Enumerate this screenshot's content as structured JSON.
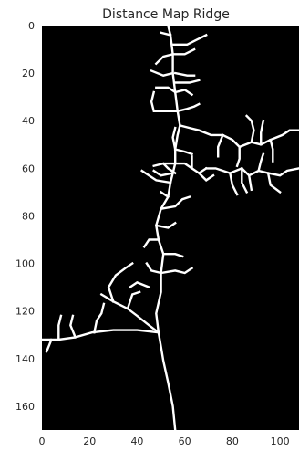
{
  "chart_data": {
    "type": "heatmap",
    "title": "Distance Map Ridge",
    "xlabel": "",
    "ylabel": "",
    "xlim": [
      0,
      108
    ],
    "ylim": [
      170,
      0
    ],
    "x_ticks": [
      0,
      20,
      40,
      60,
      80,
      100
    ],
    "y_ticks": [
      0,
      20,
      40,
      60,
      80,
      100,
      120,
      140,
      160
    ],
    "grid": false,
    "colormap": "gray",
    "background_color": "#000000",
    "ridge_color": "#ffffff",
    "ridge_paths": [
      [
        [
          56,
          170
        ],
        [
          55,
          160
        ],
        [
          53,
          150
        ],
        [
          51,
          141
        ],
        [
          50,
          135
        ],
        [
          49,
          129
        ]
      ],
      [
        [
          49,
          129
        ],
        [
          48,
          121
        ],
        [
          50,
          112
        ],
        [
          50,
          104
        ],
        [
          51,
          96
        ],
        [
          49,
          90
        ],
        [
          48,
          84
        ],
        [
          50,
          77
        ],
        [
          53,
          72
        ],
        [
          54,
          66
        ],
        [
          55,
          62
        ],
        [
          56,
          58
        ],
        [
          56,
          52
        ],
        [
          57,
          46
        ],
        [
          58,
          42
        ],
        [
          57,
          36
        ],
        [
          56,
          28
        ],
        [
          55,
          20
        ],
        [
          55,
          12
        ],
        [
          54,
          4
        ],
        [
          53,
          0
        ]
      ],
      [
        [
          49,
          129
        ],
        [
          40,
          128
        ],
        [
          30,
          128
        ],
        [
          21,
          129
        ],
        [
          14,
          131
        ],
        [
          7,
          132
        ],
        [
          0,
          132
        ]
      ],
      [
        [
          49,
          129
        ],
        [
          45,
          126
        ],
        [
          40,
          122
        ],
        [
          36,
          119
        ],
        [
          30,
          116
        ],
        [
          25,
          113
        ]
      ],
      [
        [
          14,
          131
        ],
        [
          12,
          126
        ],
        [
          13,
          122
        ]
      ],
      [
        [
          7,
          132
        ],
        [
          7,
          126
        ],
        [
          8,
          122
        ]
      ],
      [
        [
          4,
          132
        ],
        [
          2,
          137
        ]
      ],
      [
        [
          22,
          129
        ],
        [
          23,
          124
        ],
        [
          25,
          121
        ],
        [
          26,
          117
        ]
      ],
      [
        [
          30,
          116
        ],
        [
          28,
          110
        ],
        [
          31,
          105
        ],
        [
          35,
          102
        ],
        [
          38,
          100
        ]
      ],
      [
        [
          36,
          119
        ],
        [
          38,
          113
        ],
        [
          41,
          112
        ]
      ],
      [
        [
          45,
          110
        ],
        [
          40,
          108
        ],
        [
          37,
          110
        ]
      ],
      [
        [
          50,
          104
        ],
        [
          56,
          103
        ],
        [
          60,
          104
        ],
        [
          63,
          102
        ]
      ],
      [
        [
          50,
          104
        ],
        [
          46,
          103
        ],
        [
          44,
          100
        ]
      ],
      [
        [
          51,
          96
        ],
        [
          56,
          96
        ],
        [
          59,
          97
        ]
      ],
      [
        [
          49,
          90
        ],
        [
          45,
          90
        ],
        [
          43,
          93
        ]
      ],
      [
        [
          50,
          77
        ],
        [
          56,
          76
        ],
        [
          59,
          73
        ],
        [
          62,
          72
        ]
      ],
      [
        [
          48,
          84
        ],
        [
          53,
          85
        ],
        [
          56,
          83
        ]
      ],
      [
        [
          53,
          72
        ],
        [
          50,
          70
        ]
      ],
      [
        [
          54,
          66
        ],
        [
          48,
          65
        ],
        [
          45,
          63
        ],
        [
          42,
          61
        ]
      ],
      [
        [
          55,
          62
        ],
        [
          50,
          63
        ],
        [
          47,
          61
        ]
      ],
      [
        [
          56,
          58
        ],
        [
          51,
          58
        ],
        [
          47,
          59
        ]
      ],
      [
        [
          56,
          58
        ],
        [
          60,
          58
        ],
        [
          63,
          60
        ],
        [
          66,
          62
        ],
        [
          69,
          60
        ]
      ],
      [
        [
          66,
          62
        ],
        [
          69,
          65
        ],
        [
          72,
          63
        ]
      ],
      [
        [
          63,
          60
        ],
        [
          63,
          55
        ]
      ],
      [
        [
          56,
          52
        ],
        [
          60,
          53
        ],
        [
          63,
          54
        ]
      ],
      [
        [
          56,
          62
        ],
        [
          53,
          60
        ],
        [
          51,
          58
        ]
      ],
      [
        [
          69,
          60
        ],
        [
          73,
          60
        ],
        [
          76,
          61
        ],
        [
          79,
          62
        ],
        [
          84,
          60
        ],
        [
          87,
          63
        ],
        [
          91,
          61
        ],
        [
          95,
          62
        ],
        [
          100,
          63
        ],
        [
          103,
          61
        ],
        [
          108,
          60
        ]
      ],
      [
        [
          79,
          62
        ],
        [
          80,
          67
        ],
        [
          82,
          71
        ]
      ],
      [
        [
          84,
          60
        ],
        [
          84,
          66
        ],
        [
          86,
          70
        ]
      ],
      [
        [
          91,
          61
        ],
        [
          92,
          57
        ],
        [
          93,
          54
        ]
      ],
      [
        [
          87,
          63
        ],
        [
          88,
          69
        ]
      ],
      [
        [
          95,
          62
        ],
        [
          96,
          67
        ],
        [
          100,
          70
        ]
      ],
      [
        [
          56,
          52
        ],
        [
          55,
          47
        ],
        [
          56,
          43
        ]
      ],
      [
        [
          58,
          42
        ],
        [
          62,
          43
        ],
        [
          66,
          44
        ],
        [
          71,
          46
        ],
        [
          76,
          46
        ],
        [
          80,
          48
        ],
        [
          83,
          51
        ],
        [
          83,
          56
        ],
        [
          82,
          59
        ]
      ],
      [
        [
          76,
          46
        ],
        [
          74,
          51
        ],
        [
          74,
          55
        ]
      ],
      [
        [
          83,
          51
        ],
        [
          88,
          49
        ],
        [
          92,
          50
        ],
        [
          96,
          48
        ],
        [
          101,
          46
        ],
        [
          104,
          44
        ],
        [
          108,
          44
        ]
      ],
      [
        [
          88,
          49
        ],
        [
          89,
          44
        ],
        [
          88,
          40
        ],
        [
          86,
          38
        ]
      ],
      [
        [
          92,
          50
        ],
        [
          92,
          45
        ],
        [
          93,
          40
        ]
      ],
      [
        [
          96,
          48
        ],
        [
          97,
          52
        ],
        [
          97,
          57
        ]
      ],
      [
        [
          57,
          36
        ],
        [
          52,
          36
        ],
        [
          47,
          36
        ],
        [
          46,
          32
        ],
        [
          47,
          28
        ]
      ],
      [
        [
          56,
          28
        ],
        [
          53,
          26
        ],
        [
          48,
          26
        ]
      ],
      [
        [
          55,
          20
        ],
        [
          51,
          21
        ],
        [
          46,
          19
        ]
      ],
      [
        [
          55,
          12
        ],
        [
          51,
          13
        ],
        [
          48,
          16
        ]
      ],
      [
        [
          56,
          20
        ],
        [
          61,
          21
        ],
        [
          64,
          21
        ]
      ],
      [
        [
          56,
          28
        ],
        [
          60,
          27
        ],
        [
          63,
          29
        ]
      ],
      [
        [
          57,
          36
        ],
        [
          61,
          35
        ],
        [
          64,
          34
        ],
        [
          66,
          33
        ]
      ],
      [
        [
          55,
          12
        ],
        [
          60,
          12
        ],
        [
          64,
          10
        ]
      ],
      [
        [
          55,
          8
        ],
        [
          61,
          8
        ],
        [
          65,
          6
        ],
        [
          69,
          4
        ]
      ],
      [
        [
          54,
          4
        ],
        [
          50,
          3
        ]
      ],
      [
        [
          56,
          24
        ],
        [
          62,
          24
        ],
        [
          66,
          23
        ]
      ]
    ]
  }
}
